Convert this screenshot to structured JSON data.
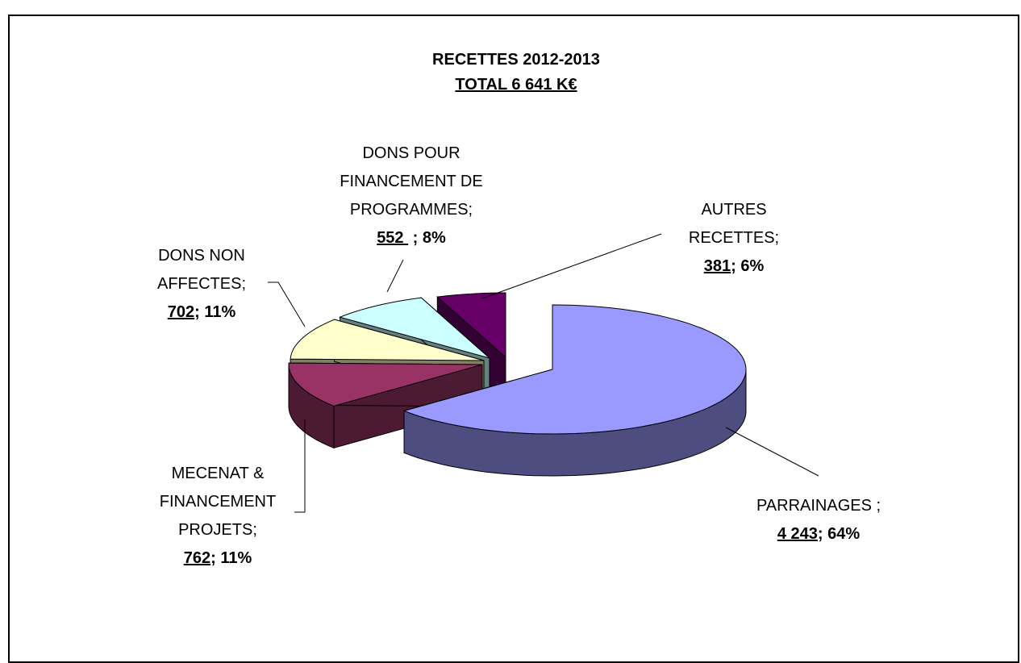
{
  "chart_data": {
    "type": "pie",
    "title": "RECETTES 2012-2013",
    "subtitle": "TOTAL 6 641 K€",
    "categories": [
      "PARRAINAGES ;",
      "MECENAT & FINANCEMENT PROJETS;",
      "DONS NON AFFECTES;",
      "DONS POUR FINANCEMENT DE PROGRAMMES;",
      "AUTRES RECETTES;"
    ],
    "values": [
      4243,
      762,
      702,
      552,
      381
    ],
    "value_labels": [
      "4 243",
      "762",
      "702",
      "552 ",
      "381"
    ],
    "percents": [
      64,
      11,
      11,
      8,
      6
    ],
    "percent_labels": [
      "; 64%",
      "; 11%",
      "; 11%",
      " ; 8%",
      "; 6%"
    ],
    "colors": [
      "#9999ff",
      "#993366",
      "#ffffcc",
      "#ccffff",
      "#660066"
    ]
  }
}
